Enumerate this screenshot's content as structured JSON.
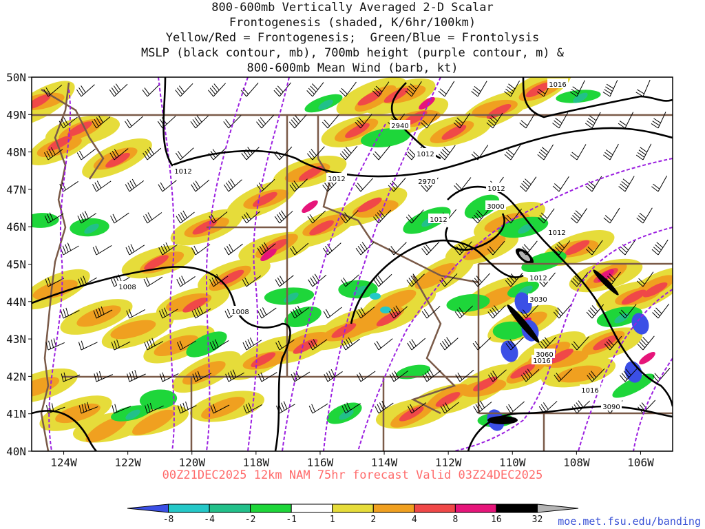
{
  "title": {
    "lines": [
      "800-600mb Vertically Averaged 2-D Scalar",
      "Frontogenesis (shaded, K/6hr/100km)",
      "Yellow/Red = Frontogenesis;  Green/Blue = Frontolysis",
      "MSLP (black contour, mb), 700mb height (purple contour, m) &",
      "800-600mb Mean Wind (barb, kt)"
    ]
  },
  "subtitle": "00Z21DEC2025 12km NAM 75hr forecast Valid 03Z24DEC2025",
  "credit": "moe.met.fsu.edu/banding",
  "map": {
    "lon_range": [
      -125,
      -105
    ],
    "lat_range": [
      40,
      50
    ],
    "lat_labels": [
      "40N",
      "41N",
      "42N",
      "43N",
      "44N",
      "45N",
      "46N",
      "47N",
      "48N",
      "49N",
      "50N"
    ],
    "lon_labels": [
      "124W",
      "122W",
      "120W",
      "118W",
      "116W",
      "114W",
      "112W",
      "110W",
      "108W",
      "106W"
    ],
    "isobar_labels": [
      "1016",
      "1012",
      "1012",
      "1012",
      "1012",
      "1012",
      "1012",
      "1008",
      "1008",
      "1016",
      "1016",
      "1012"
    ],
    "height_labels": [
      "2940",
      "2970",
      "3000",
      "3030",
      "3060",
      "3090"
    ]
  },
  "colorbar": {
    "ticks": [
      "-8",
      "-4",
      "-2",
      "-1",
      "1",
      "2",
      "4",
      "8",
      "16",
      "32"
    ],
    "colors": [
      "#3b4fe6",
      "#24c8c8",
      "#22c08a",
      "#1ed63a",
      "#ffffff",
      "#e6dc3a",
      "#f0a020",
      "#f04848",
      "#e6157a",
      "#000000",
      "#b4b4b4"
    ]
  },
  "colors": {
    "isobar": "#000000",
    "height": "#9b1fe0",
    "border": "#7a5a48",
    "frame": "#000000"
  }
}
